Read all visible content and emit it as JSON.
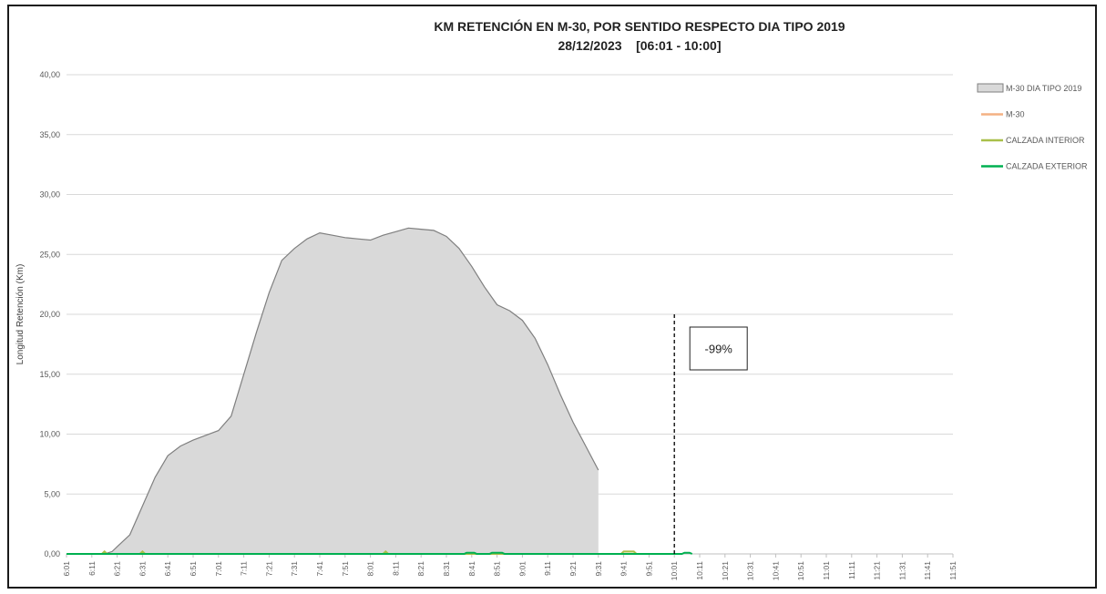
{
  "chart_data": {
    "type": "area",
    "title": "KM RETENCIÓN EN M-30, POR SENTIDO RESPECTO DIA TIPO 2019",
    "subtitle": "28/12/2023    [06:01 - 10:00]",
    "ylabel": "Longitud Retención (Km)",
    "xlabel": "",
    "ylim": [
      0,
      40
    ],
    "yticks": [
      "0,00",
      "5,00",
      "10,00",
      "15,00",
      "20,00",
      "25,00",
      "30,00",
      "35,00",
      "40,00"
    ],
    "xticks": [
      "6:01",
      "6:11",
      "6:21",
      "6:31",
      "6:41",
      "6:51",
      "7:01",
      "7:11",
      "7:21",
      "7:31",
      "7:41",
      "7:51",
      "8:01",
      "8:11",
      "8:21",
      "8:31",
      "8:41",
      "8:51",
      "9:01",
      "9:11",
      "9:21",
      "9:31",
      "9:41",
      "9:51",
      "10:01",
      "10:11",
      "10:21",
      "10:31",
      "10:41",
      "10:51",
      "11:01",
      "11:11",
      "11:21",
      "11:31",
      "11:41",
      "11:51"
    ],
    "x_unit": "minutes after 6:01",
    "grid": true,
    "legend_position": "right",
    "series": [
      {
        "name": "M-30 DIA TIPO 2019",
        "kind": "area",
        "color": "#d9d9d9",
        "x": [
          0,
          10,
          15,
          18,
          20,
          25,
          30,
          35,
          40,
          45,
          50,
          55,
          60,
          65,
          70,
          75,
          80,
          85,
          90,
          95,
          100,
          105,
          110,
          115,
          120,
          125,
          130,
          135,
          140,
          145,
          150,
          155,
          160,
          165,
          170,
          175,
          180,
          185,
          190,
          195,
          200,
          205,
          210,
          215,
          220,
          225,
          230,
          235,
          240
        ],
        "values": [
          0,
          0,
          0,
          0.2,
          0.6,
          1.6,
          4.0,
          6.4,
          8.2,
          9.0,
          9.5,
          9.9,
          10.3,
          11.5,
          15.0,
          18.5,
          21.8,
          24.5,
          25.5,
          26.3,
          26.8,
          26.6,
          26.4,
          26.3,
          26.2,
          26.6,
          26.9,
          27.2,
          27.1,
          27.0,
          26.5,
          25.5,
          24.0,
          22.3,
          20.8,
          20.3,
          19.5,
          18.0,
          15.8,
          13.3,
          11.0,
          9.0,
          7.0,
          null,
          null,
          null,
          null,
          null,
          null
        ]
      },
      {
        "name": "M-30",
        "kind": "line",
        "color": "#f4b183",
        "x": [
          0,
          14,
          15,
          16,
          29,
          30,
          31,
          125,
          126,
          127,
          219,
          220,
          221,
          224,
          225,
          240
        ],
        "values": [
          0,
          0,
          0.2,
          0,
          0,
          0.2,
          0,
          0,
          0.2,
          0,
          0,
          0.2,
          0.2,
          0.2,
          0,
          0
        ]
      },
      {
        "name": "CALZADA INTERIOR",
        "kind": "line",
        "color": "#a9c04a",
        "x": [
          0,
          14,
          15,
          16,
          29,
          30,
          31,
          125,
          126,
          127,
          219,
          220,
          221,
          224,
          225,
          240
        ],
        "values": [
          0,
          0,
          0.2,
          0,
          0,
          0.2,
          0,
          0,
          0.2,
          0,
          0,
          0.2,
          0.2,
          0.2,
          0,
          0
        ]
      },
      {
        "name": "CALZADA EXTERIOR",
        "kind": "line",
        "color": "#00b050",
        "x": [
          0,
          157,
          158,
          161,
          162,
          167,
          168,
          172,
          173,
          243,
          244,
          246,
          247,
          240
        ],
        "values": [
          0,
          0,
          0.1,
          0.1,
          0,
          0,
          0.1,
          0.1,
          0,
          0,
          0.1,
          0.1,
          0,
          0
        ]
      }
    ],
    "annotation": {
      "text": "-99%",
      "marker_x_label": "10:01"
    }
  }
}
